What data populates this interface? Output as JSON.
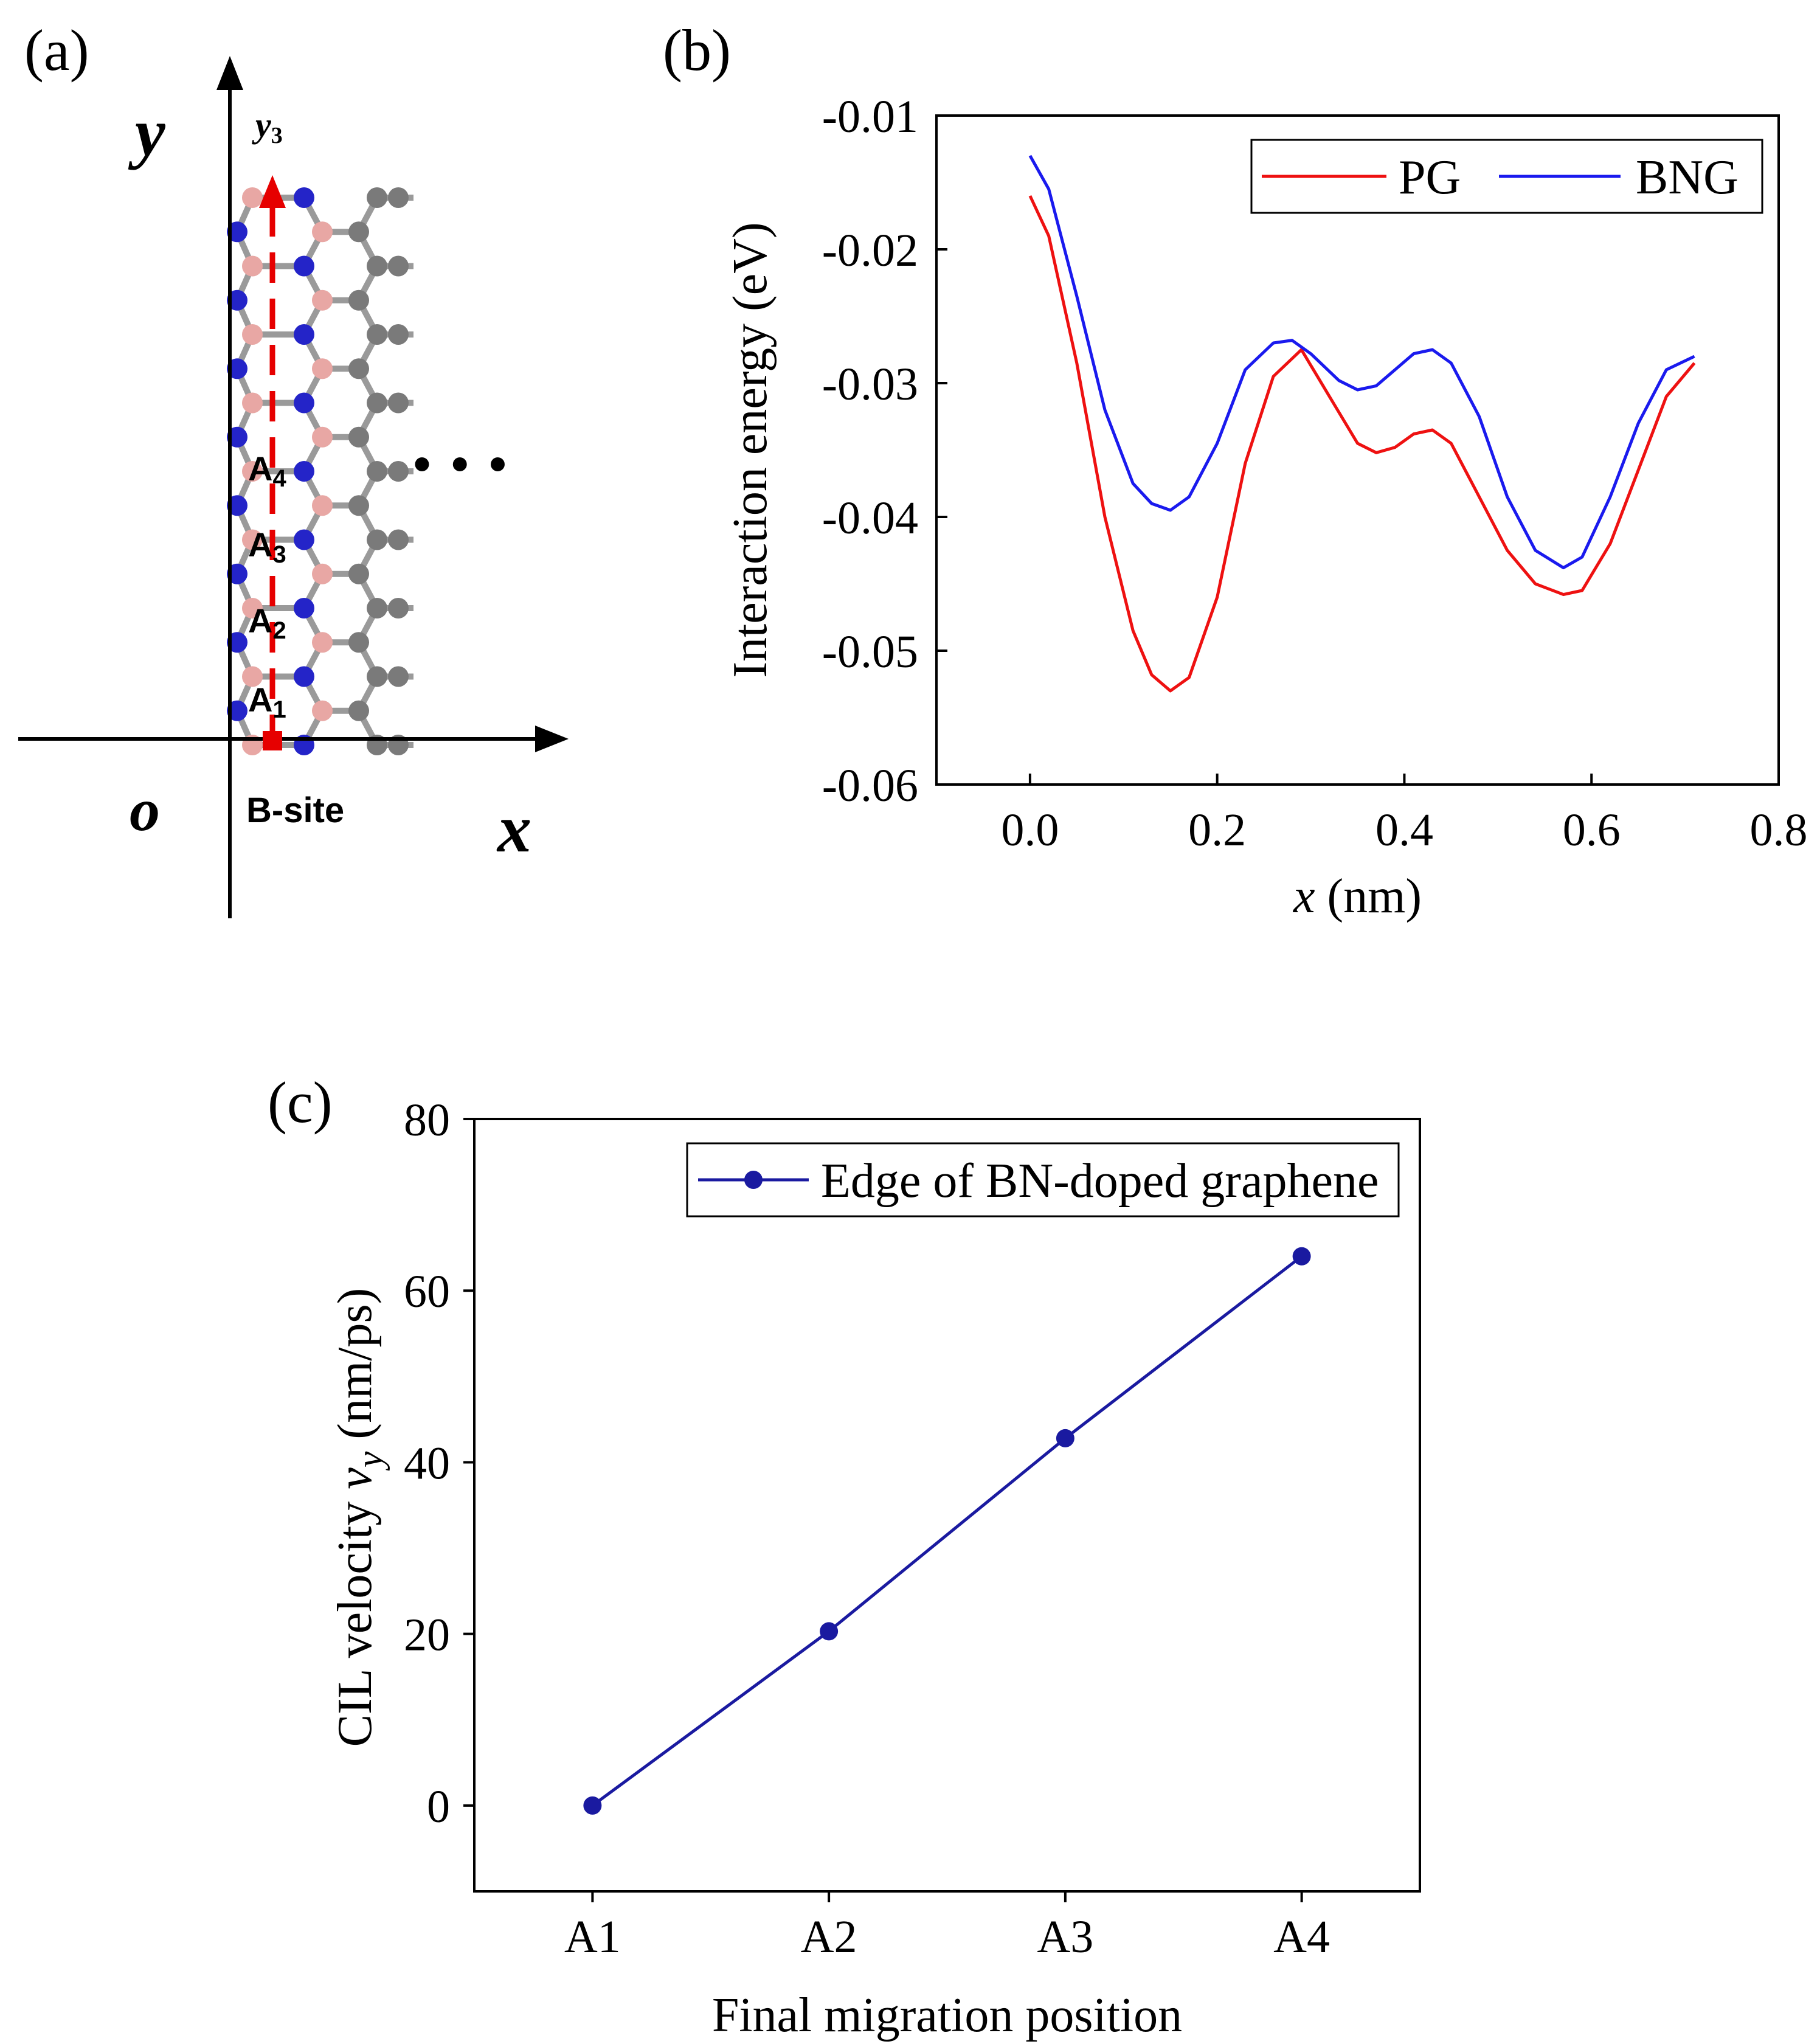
{
  "panels": {
    "a": {
      "label": "(a)",
      "y_axis_label": "y",
      "x_axis_label": "x",
      "origin_label": "o",
      "path_label": "y",
      "path_label_sub": "3",
      "start_label": "B-site",
      "ellipsis": "• • •",
      "sites": [
        {
          "name": "A",
          "sub": "1"
        },
        {
          "name": "A",
          "sub": "2"
        },
        {
          "name": "A",
          "sub": "3"
        },
        {
          "name": "A",
          "sub": "4"
        }
      ],
      "colors": {
        "boron": "#e8a7a4",
        "nitrogen": "#2424c8",
        "carbon": "#7a7a7a",
        "path": "#e60000"
      }
    },
    "b": {
      "label": "(b)"
    },
    "c": {
      "label": "(c)"
    }
  },
  "chart_data": [
    {
      "id": "b",
      "type": "line",
      "title": "",
      "xlabel_italic": "x",
      "xlabel_rest": " (nm)",
      "ylabel": "Interaction energy (eV)",
      "xlim": [
        -0.1,
        0.8
      ],
      "ylim": [
        -0.06,
        -0.01
      ],
      "xticks": [
        0.0,
        0.2,
        0.4,
        0.6,
        0.8
      ],
      "xtick_labels": [
        "0.0",
        "0.2",
        "0.4",
        "0.6",
        "0.8"
      ],
      "yticks": [
        -0.01,
        -0.02,
        -0.03,
        -0.04,
        -0.05,
        -0.06
      ],
      "ytick_labels": [
        "-0.01",
        "-0.02",
        "-0.03",
        "-0.04",
        "-0.05",
        "-0.06"
      ],
      "legend_position": "top-right",
      "series": [
        {
          "name": "PG",
          "color": "#ee1111",
          "x": [
            0.0,
            0.02,
            0.05,
            0.08,
            0.11,
            0.13,
            0.15,
            0.17,
            0.2,
            0.23,
            0.26,
            0.29,
            0.32,
            0.35,
            0.37,
            0.39,
            0.41,
            0.43,
            0.45,
            0.48,
            0.51,
            0.54,
            0.57,
            0.59,
            0.62,
            0.65,
            0.68,
            0.71
          ],
          "values": [
            -0.016,
            -0.019,
            -0.0285,
            -0.04,
            -0.0485,
            -0.0518,
            -0.053,
            -0.052,
            -0.046,
            -0.036,
            -0.0295,
            -0.0275,
            -0.031,
            -0.0345,
            -0.0352,
            -0.0348,
            -0.0338,
            -0.0335,
            -0.0345,
            -0.0385,
            -0.0425,
            -0.045,
            -0.0458,
            -0.0455,
            -0.042,
            -0.0365,
            -0.031,
            -0.0285
          ]
        },
        {
          "name": "BNG",
          "color": "#1a1aee",
          "x": [
            0.0,
            0.02,
            0.05,
            0.08,
            0.11,
            0.13,
            0.15,
            0.17,
            0.2,
            0.23,
            0.26,
            0.28,
            0.3,
            0.33,
            0.35,
            0.37,
            0.39,
            0.41,
            0.43,
            0.45,
            0.48,
            0.51,
            0.54,
            0.57,
            0.59,
            0.62,
            0.65,
            0.68,
            0.71
          ],
          "values": [
            -0.013,
            -0.0155,
            -0.0235,
            -0.032,
            -0.0375,
            -0.039,
            -0.0395,
            -0.0385,
            -0.0345,
            -0.029,
            -0.027,
            -0.0268,
            -0.0278,
            -0.0298,
            -0.0305,
            -0.0302,
            -0.029,
            -0.0278,
            -0.0275,
            -0.0285,
            -0.0325,
            -0.0385,
            -0.0425,
            -0.0438,
            -0.043,
            -0.0385,
            -0.033,
            -0.029,
            -0.028
          ]
        }
      ]
    },
    {
      "id": "c",
      "type": "line",
      "title": "",
      "xlabel": "Final migration position",
      "ylabel_prefix": "CIL velocity  ",
      "ylabel_var": "v",
      "ylabel_var_sub": "y",
      "ylabel_suffix": " (nm/ps)",
      "categories": [
        "A1",
        "A2",
        "A3",
        "A4"
      ],
      "ylim": [
        -10,
        80
      ],
      "yticks": [
        0,
        20,
        40,
        60,
        80
      ],
      "ytick_labels": [
        "0",
        "20",
        "40",
        "60",
        "80"
      ],
      "legend_position": "top-right",
      "series": [
        {
          "name": "Edge of BN-doped graphene",
          "color": "#1a1aa0",
          "marker": "circle",
          "values": [
            0,
            20.3,
            42.8,
            64
          ]
        }
      ]
    }
  ]
}
